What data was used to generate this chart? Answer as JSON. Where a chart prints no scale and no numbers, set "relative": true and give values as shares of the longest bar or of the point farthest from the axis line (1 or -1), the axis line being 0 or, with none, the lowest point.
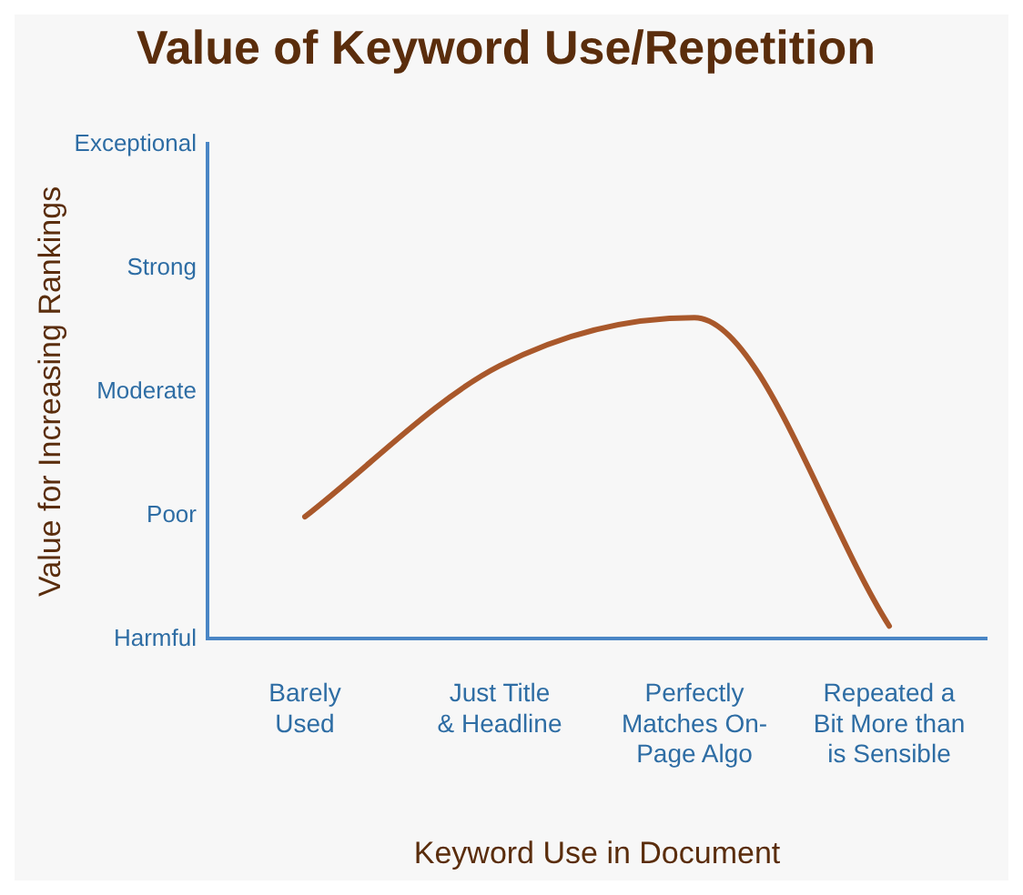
{
  "chart_data": {
    "type": "line",
    "title": "Value of Keyword Use/Repetition",
    "xlabel": "Keyword Use in Document",
    "ylabel": "Value for Increasing Rankings",
    "categories": [
      "Barely\nUsed",
      "Just Title\n& Headline",
      "Perfectly\nMatches On-\nPage Algo",
      "Repeated a\nBit More than\nis Sensible"
    ],
    "series": [
      {
        "color": "#a9582b",
        "values": [
          0.38,
          0.85,
          1.0,
          0.04
        ]
      }
    ],
    "relative": true,
    "annotations": [
      "Harmful",
      "Poor",
      "Moderate",
      "Strong",
      "Exceptional"
    ],
    "grid": false,
    "legend": false,
    "marker": "none",
    "line_style": "solid"
  }
}
